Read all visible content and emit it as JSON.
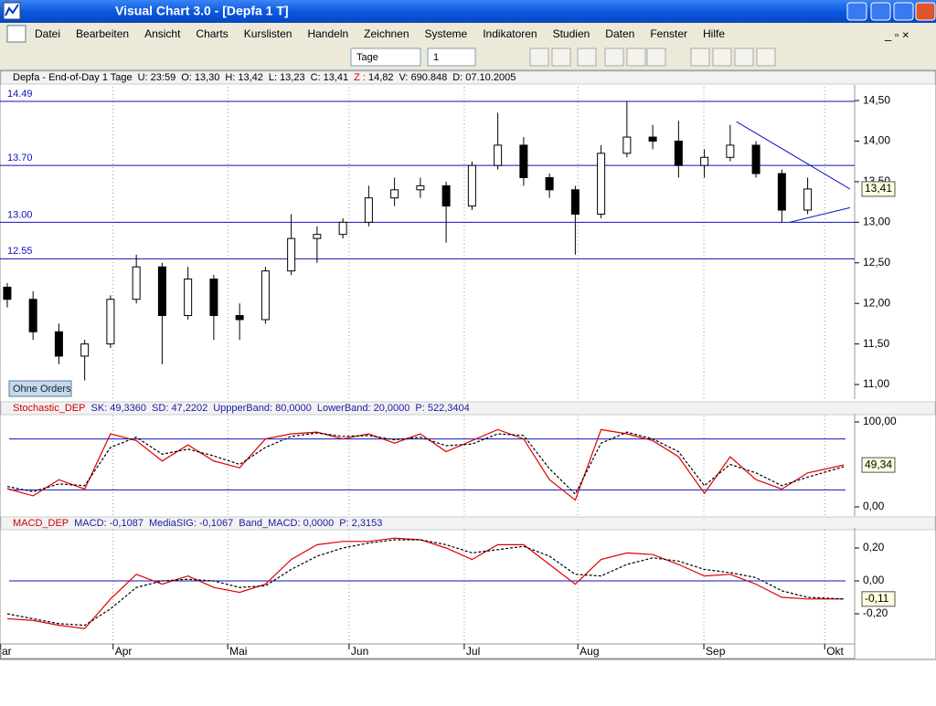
{
  "window": {
    "title": "Visual Chart  3.0 - [Depfa 1 T]"
  },
  "menu": [
    "Datei",
    "Bearbeiten",
    "Ansicht",
    "Charts",
    "Kurslisten",
    "Handeln",
    "Zeichnen",
    "Systeme",
    "Indikatoren",
    "Studien",
    "Daten",
    "Fenster",
    "Hilfe"
  ],
  "toolbar": {
    "period": "Tage",
    "count": "1"
  },
  "orders_button": "Ohne Orders",
  "chart_data": [
    {
      "type": "candlestick",
      "header": {
        "name": "Depfa - End-of-Day 1 Tage",
        "fields": [
          {
            "label": "U:",
            "value": "23:59"
          },
          {
            "label": "O:",
            "value": "13,30"
          },
          {
            "label": "H:",
            "value": "13,42"
          },
          {
            "label": "L:",
            "value": "13,23"
          },
          {
            "label": "C:",
            "value": "13,41"
          },
          {
            "label": "Z :",
            "value": "14,82"
          },
          {
            "label": "V:",
            "value": "690.848"
          },
          {
            "label": "D:",
            "value": "07.10.2005"
          }
        ]
      },
      "x": [
        0,
        5,
        10,
        15,
        20,
        25,
        30,
        35,
        40,
        45,
        50,
        55,
        60,
        65,
        70,
        75,
        80,
        85,
        90,
        95,
        100,
        105,
        110,
        115,
        120,
        125,
        130,
        135,
        140,
        145,
        150,
        155
      ],
      "open": [
        12.2,
        12.05,
        11.65,
        11.35,
        11.5,
        12.05,
        12.45,
        11.85,
        12.3,
        11.85,
        11.8,
        12.4,
        12.8,
        12.85,
        13.0,
        13.3,
        13.4,
        13.45,
        13.2,
        13.7,
        13.95,
        13.55,
        13.4,
        13.1,
        13.85,
        14.05,
        14.0,
        13.7,
        13.8,
        13.95,
        13.6,
        13.15
      ],
      "high": [
        12.25,
        12.15,
        11.75,
        11.55,
        12.1,
        12.6,
        12.5,
        12.45,
        12.35,
        12.0,
        12.45,
        13.1,
        12.95,
        13.05,
        13.45,
        13.55,
        13.55,
        13.5,
        13.75,
        14.35,
        14.05,
        13.6,
        13.45,
        13.95,
        14.49,
        14.2,
        14.25,
        13.9,
        14.2,
        14.0,
        13.65,
        13.55
      ],
      "low": [
        11.95,
        11.55,
        11.25,
        11.05,
        11.45,
        12.0,
        11.25,
        11.8,
        11.55,
        11.55,
        11.75,
        12.35,
        12.5,
        12.8,
        12.95,
        13.2,
        13.3,
        12.75,
        13.15,
        13.65,
        13.45,
        13.3,
        12.6,
        13.05,
        13.8,
        13.9,
        13.55,
        13.55,
        13.75,
        13.55,
        13.0,
        13.1
      ],
      "close": [
        12.05,
        11.65,
        11.35,
        11.5,
        12.05,
        12.45,
        11.85,
        12.3,
        11.85,
        11.8,
        12.4,
        12.8,
        12.85,
        13.0,
        13.3,
        13.4,
        13.45,
        13.2,
        13.7,
        13.95,
        13.55,
        13.4,
        13.1,
        13.85,
        14.05,
        14.0,
        13.7,
        13.8,
        13.95,
        13.6,
        13.15,
        13.41
      ],
      "xlim": [
        -1.4,
        164.1
      ],
      "ylim": [
        10.82,
        14.67
      ],
      "yticks": [
        {
          "value": 11,
          "label": "11,00"
        },
        {
          "value": 11.5,
          "label": "11,50"
        },
        {
          "value": 12,
          "label": "12,00"
        },
        {
          "value": 12.5,
          "label": "12,50"
        },
        {
          "value": 13,
          "label": "13,00"
        },
        {
          "value": 13.5,
          "label": "13,50"
        },
        {
          "value": 14,
          "label": "14,00"
        },
        {
          "value": 14.5,
          "label": "14,50"
        }
      ],
      "xticks": [
        {
          "value": -1.4,
          "label": "ar"
        },
        {
          "value": 20.5,
          "label": "Apr"
        },
        {
          "value": 42.7,
          "label": "Mai"
        },
        {
          "value": 66.2,
          "label": "Jun"
        },
        {
          "value": 88.5,
          "label": "Jul"
        },
        {
          "value": 110.5,
          "label": "Aug"
        },
        {
          "value": 134.9,
          "label": "Sep"
        },
        {
          "value": 158.3,
          "label": "Okt"
        }
      ],
      "hlines": [
        14.49,
        {
          "value": 13.7,
          "label": "13.70"
        },
        {
          "value": 13,
          "label": "13.00"
        },
        12.55
      ],
      "trendlines": [
        {
          "x": [
            141.2,
            163.2
          ],
          "y": [
            14.24,
            13.41
          ]
        },
        {
          "x": [
            151.5,
            163.2
          ],
          "y": [
            13.0,
            13.18
          ]
        }
      ],
      "last_value": {
        "value": 13.41,
        "label": "13,41"
      }
    },
    {
      "type": "line",
      "header": [
        "Stochastic_DEP",
        "SK: 49,3360",
        "SD: 47,2202",
        "UppperBand: 80,0000",
        "LowerBand: 20,0000",
        "P: 522,3404"
      ],
      "x": [
        0,
        5,
        10,
        15,
        20,
        25,
        30,
        35,
        40,
        45,
        50,
        55,
        60,
        65,
        70,
        75,
        80,
        85,
        90,
        95,
        100,
        105,
        110,
        115,
        120,
        125,
        130,
        135,
        140,
        145,
        150,
        155,
        162
      ],
      "series": [
        {
          "color": "#e00000",
          "dashed": false,
          "values": [
            21.5,
            13,
            32,
            21,
            86,
            78,
            54,
            73,
            54,
            46,
            80,
            86,
            88,
            80,
            86,
            75,
            86,
            65,
            78,
            91,
            80,
            32,
            8,
            91,
            86,
            78,
            59,
            16,
            59,
            32,
            21,
            40,
            49.34
          ]
        },
        {
          "color": "#000000",
          "dashed": true,
          "values": [
            24,
            18,
            27,
            25,
            70,
            82,
            62,
            68,
            60,
            50,
            70,
            83,
            87,
            83,
            84,
            79,
            82,
            72,
            74,
            86,
            84,
            45,
            15,
            75,
            88,
            80,
            65,
            25,
            50,
            40,
            25,
            35,
            47.22
          ]
        }
      ],
      "xlim": [
        -1.4,
        164.1
      ],
      "ylim": [
        -10.75,
        107.5
      ],
      "yticks": [
        {
          "value": 0,
          "label": "0,00"
        },
        {
          "value": 100,
          "label": "100,00"
        }
      ],
      "hlines": [
        80,
        20
      ],
      "last_value": {
        "value": 49.34,
        "label": "49,34"
      }
    },
    {
      "type": "line",
      "header": [
        "MACD_DEP",
        "MACD: -0,1087",
        "MediaSIG: -0,1067",
        "Band_MACD: 0,0000",
        "P: 2,3153"
      ],
      "x": [
        0,
        5,
        10,
        15,
        20,
        25,
        30,
        35,
        40,
        45,
        50,
        55,
        60,
        65,
        70,
        75,
        80,
        85,
        90,
        95,
        100,
        105,
        110,
        115,
        120,
        125,
        130,
        135,
        140,
        145,
        150,
        155,
        162
      ],
      "series": [
        {
          "color": "#e00000",
          "dashed": false,
          "values": [
            -0.23,
            -0.24,
            -0.27,
            -0.29,
            -0.11,
            0.04,
            -0.02,
            0.03,
            -0.04,
            -0.07,
            -0.02,
            0.13,
            0.22,
            0.24,
            0.24,
            0.26,
            0.25,
            0.2,
            0.13,
            0.22,
            0.22,
            0.1,
            -0.02,
            0.13,
            0.17,
            0.16,
            0.1,
            0.03,
            0.04,
            -0.02,
            -0.1,
            -0.11,
            -0.11
          ]
        },
        {
          "color": "#000000",
          "dashed": true,
          "values": [
            -0.2,
            -0.23,
            -0.26,
            -0.27,
            -0.17,
            -0.04,
            0,
            0.01,
            0,
            -0.04,
            -0.03,
            0.07,
            0.15,
            0.2,
            0.23,
            0.25,
            0.25,
            0.22,
            0.17,
            0.19,
            0.21,
            0.15,
            0.04,
            0.03,
            0.1,
            0.14,
            0.12,
            0.07,
            0.05,
            0.02,
            -0.06,
            -0.1,
            -0.11
          ]
        }
      ],
      "xlim": [
        -1.4,
        164.1
      ],
      "ylim": [
        -0.383,
        0.311
      ],
      "yticks": [
        {
          "value": -0.2,
          "label": "-0,20"
        },
        {
          "value": 0,
          "label": "0,00"
        },
        {
          "value": 0.2,
          "label": "0,20"
        }
      ],
      "hlines": [
        0
      ],
      "last_value": {
        "value": -0.11,
        "label": "-0,11"
      }
    }
  ]
}
